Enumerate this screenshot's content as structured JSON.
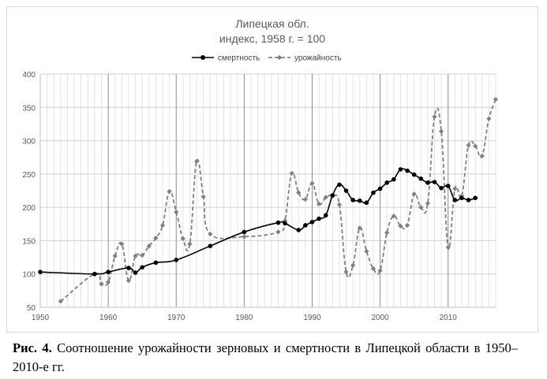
{
  "chart_data": {
    "type": "line",
    "title": "Липецкая обл.",
    "subtitle": "индекс, 1958 г. = 100",
    "xlim": [
      1950,
      2017
    ],
    "ylim": [
      50,
      400
    ],
    "x_ticks": [
      "1950",
      "1960",
      "1970",
      "1980",
      "1990",
      "2000",
      "2010"
    ],
    "y_ticks": [
      "50",
      "100",
      "150",
      "200",
      "250",
      "300",
      "350",
      "400"
    ],
    "grid": "on",
    "legend_position": "top",
    "series": [
      {
        "name": "смертность",
        "style": "solid",
        "color": "#000000",
        "points": [
          [
            1950,
            103
          ],
          [
            1958,
            100
          ],
          [
            1960,
            103
          ],
          [
            1963,
            109
          ],
          [
            1964,
            102
          ],
          [
            1965,
            110
          ],
          [
            1967,
            117
          ],
          [
            1970,
            121
          ],
          [
            1975,
            142
          ],
          [
            1980,
            163
          ],
          [
            1985,
            177
          ],
          [
            1986,
            176
          ],
          [
            1988,
            166
          ],
          [
            1989,
            173
          ],
          [
            1990,
            178
          ],
          [
            1991,
            183
          ],
          [
            1992,
            188
          ],
          [
            1993,
            218
          ],
          [
            1994,
            234
          ],
          [
            1995,
            225
          ],
          [
            1996,
            211
          ],
          [
            1997,
            210
          ],
          [
            1998,
            207
          ],
          [
            1999,
            222
          ],
          [
            2000,
            228
          ],
          [
            2001,
            237
          ],
          [
            2002,
            242
          ],
          [
            2003,
            257
          ],
          [
            2004,
            255
          ],
          [
            2005,
            249
          ],
          [
            2006,
            243
          ],
          [
            2007,
            237
          ],
          [
            2008,
            238
          ],
          [
            2009,
            229
          ],
          [
            2010,
            232
          ],
          [
            2011,
            211
          ],
          [
            2012,
            214
          ],
          [
            2013,
            211
          ],
          [
            2014,
            214
          ]
        ]
      },
      {
        "name": "урожайность",
        "style": "dashed",
        "color": "#808080",
        "points": [
          [
            1953,
            59
          ],
          [
            1958,
            100
          ],
          [
            1959,
            85
          ],
          [
            1960,
            88
          ],
          [
            1961,
            127
          ],
          [
            1962,
            145
          ],
          [
            1963,
            90
          ],
          [
            1964,
            127
          ],
          [
            1965,
            128
          ],
          [
            1966,
            142
          ],
          [
            1967,
            154
          ],
          [
            1968,
            173
          ],
          [
            1969,
            224
          ],
          [
            1970,
            193
          ],
          [
            1971,
            153
          ],
          [
            1972,
            145
          ],
          [
            1973,
            269
          ],
          [
            1974,
            216
          ],
          [
            1975,
            160
          ],
          [
            1980,
            156
          ],
          [
            1985,
            163
          ],
          [
            1986,
            180
          ],
          [
            1987,
            251
          ],
          [
            1988,
            222
          ],
          [
            1989,
            212
          ],
          [
            1990,
            236
          ],
          [
            1991,
            205
          ],
          [
            1992,
            215
          ],
          [
            1993,
            217
          ],
          [
            1994,
            204
          ],
          [
            1995,
            103
          ],
          [
            1996,
            113
          ],
          [
            1997,
            169
          ],
          [
            1998,
            134
          ],
          [
            1999,
            108
          ],
          [
            2000,
            105
          ],
          [
            2001,
            162
          ],
          [
            2002,
            187
          ],
          [
            2003,
            172
          ],
          [
            2004,
            173
          ],
          [
            2005,
            220
          ],
          [
            2006,
            200
          ],
          [
            2007,
            206
          ],
          [
            2008,
            336
          ],
          [
            2009,
            314
          ],
          [
            2010,
            140
          ],
          [
            2011,
            228
          ],
          [
            2012,
            217
          ],
          [
            2013,
            293
          ],
          [
            2014,
            292
          ],
          [
            2015,
            277
          ],
          [
            2016,
            333
          ],
          [
            2017,
            362
          ]
        ]
      }
    ]
  },
  "caption": {
    "label": "Рис. 4.",
    "text": "Соотношение урожайности зерновых и смертности в Липецкой области в 1950–2010-е гг."
  }
}
